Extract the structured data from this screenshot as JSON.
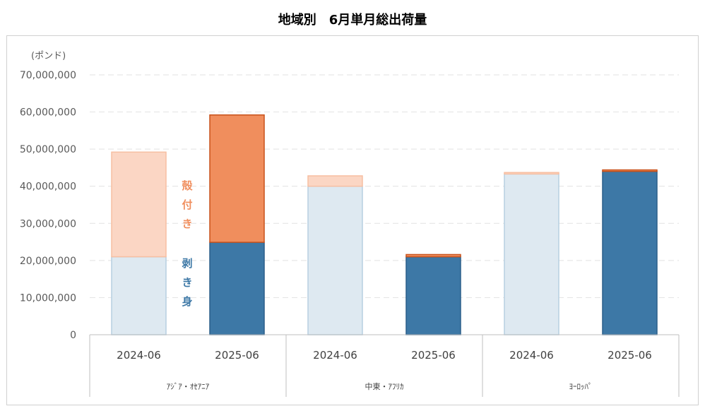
{
  "chart_data": {
    "type": "bar",
    "stacked": true,
    "title": "地域別　6月単月総出荷量",
    "unit_label": "(ポンド)",
    "ylim": [
      0,
      70000000
    ],
    "y_ticks": [
      "0",
      "10,000,000",
      "20,000,000",
      "30,000,000",
      "40,000,000",
      "50,000,000",
      "60,000,000",
      "70,000,000"
    ],
    "y_tick_values": [
      0,
      10000000,
      20000000,
      30000000,
      40000000,
      50000000,
      60000000,
      70000000
    ],
    "grid": true,
    "groups": [
      {
        "label": "ｱｼﾞｱ・ｵｾｱﾆｱ",
        "categories": [
          "2024-06",
          "2025-06"
        ]
      },
      {
        "label": "中東・ｱﾌﾘｶ",
        "categories": [
          "2024-06",
          "2025-06"
        ]
      },
      {
        "label": "ﾖｰﾛｯﾊﾟ",
        "categories": [
          "2024-06",
          "2025-06"
        ]
      }
    ],
    "bars": [
      {
        "group": "ｱｼﾞｱ・ｵｾｱﾆｱ",
        "category": "2024-06",
        "peeled": 21000000,
        "shell_on": 28200000,
        "highlight": false
      },
      {
        "group": "ｱｼﾞｱ・ｵｾｱﾆｱ",
        "category": "2025-06",
        "peeled": 24900000,
        "shell_on": 34300000,
        "highlight": true
      },
      {
        "group": "中東・ｱﾌﾘｶ",
        "category": "2024-06",
        "peeled": 40000000,
        "shell_on": 2800000,
        "highlight": false
      },
      {
        "group": "中東・ｱﾌﾘｶ",
        "category": "2025-06",
        "peeled": 21000000,
        "shell_on": 600000,
        "highlight": true
      },
      {
        "group": "ﾖｰﾛｯﾊﾟ",
        "category": "2024-06",
        "peeled": 43300000,
        "shell_on": 400000,
        "highlight": false
      },
      {
        "group": "ﾖｰﾛｯﾊﾟ",
        "category": "2025-06",
        "peeled": 44000000,
        "shell_on": 400000,
        "highlight": true
      }
    ],
    "annotations": {
      "shell_on": [
        "殻",
        "付",
        "き"
      ],
      "peeled": [
        "剥",
        "き",
        "身"
      ]
    },
    "colors": {
      "peeled_light": "#dee9f1",
      "peeled_light_border": "#b7cfe1",
      "peeled_dark": "#3d78a6",
      "peeled_dark_border": "#2b5f8a",
      "shell_light": "#fbd6c4",
      "shell_light_border": "#f7bfa2",
      "shell_dark": "#f08e5d",
      "shell_dark_border": "#c9521b",
      "shell_label": "#f08e5d",
      "peeled_label": "#3d78a6"
    }
  }
}
